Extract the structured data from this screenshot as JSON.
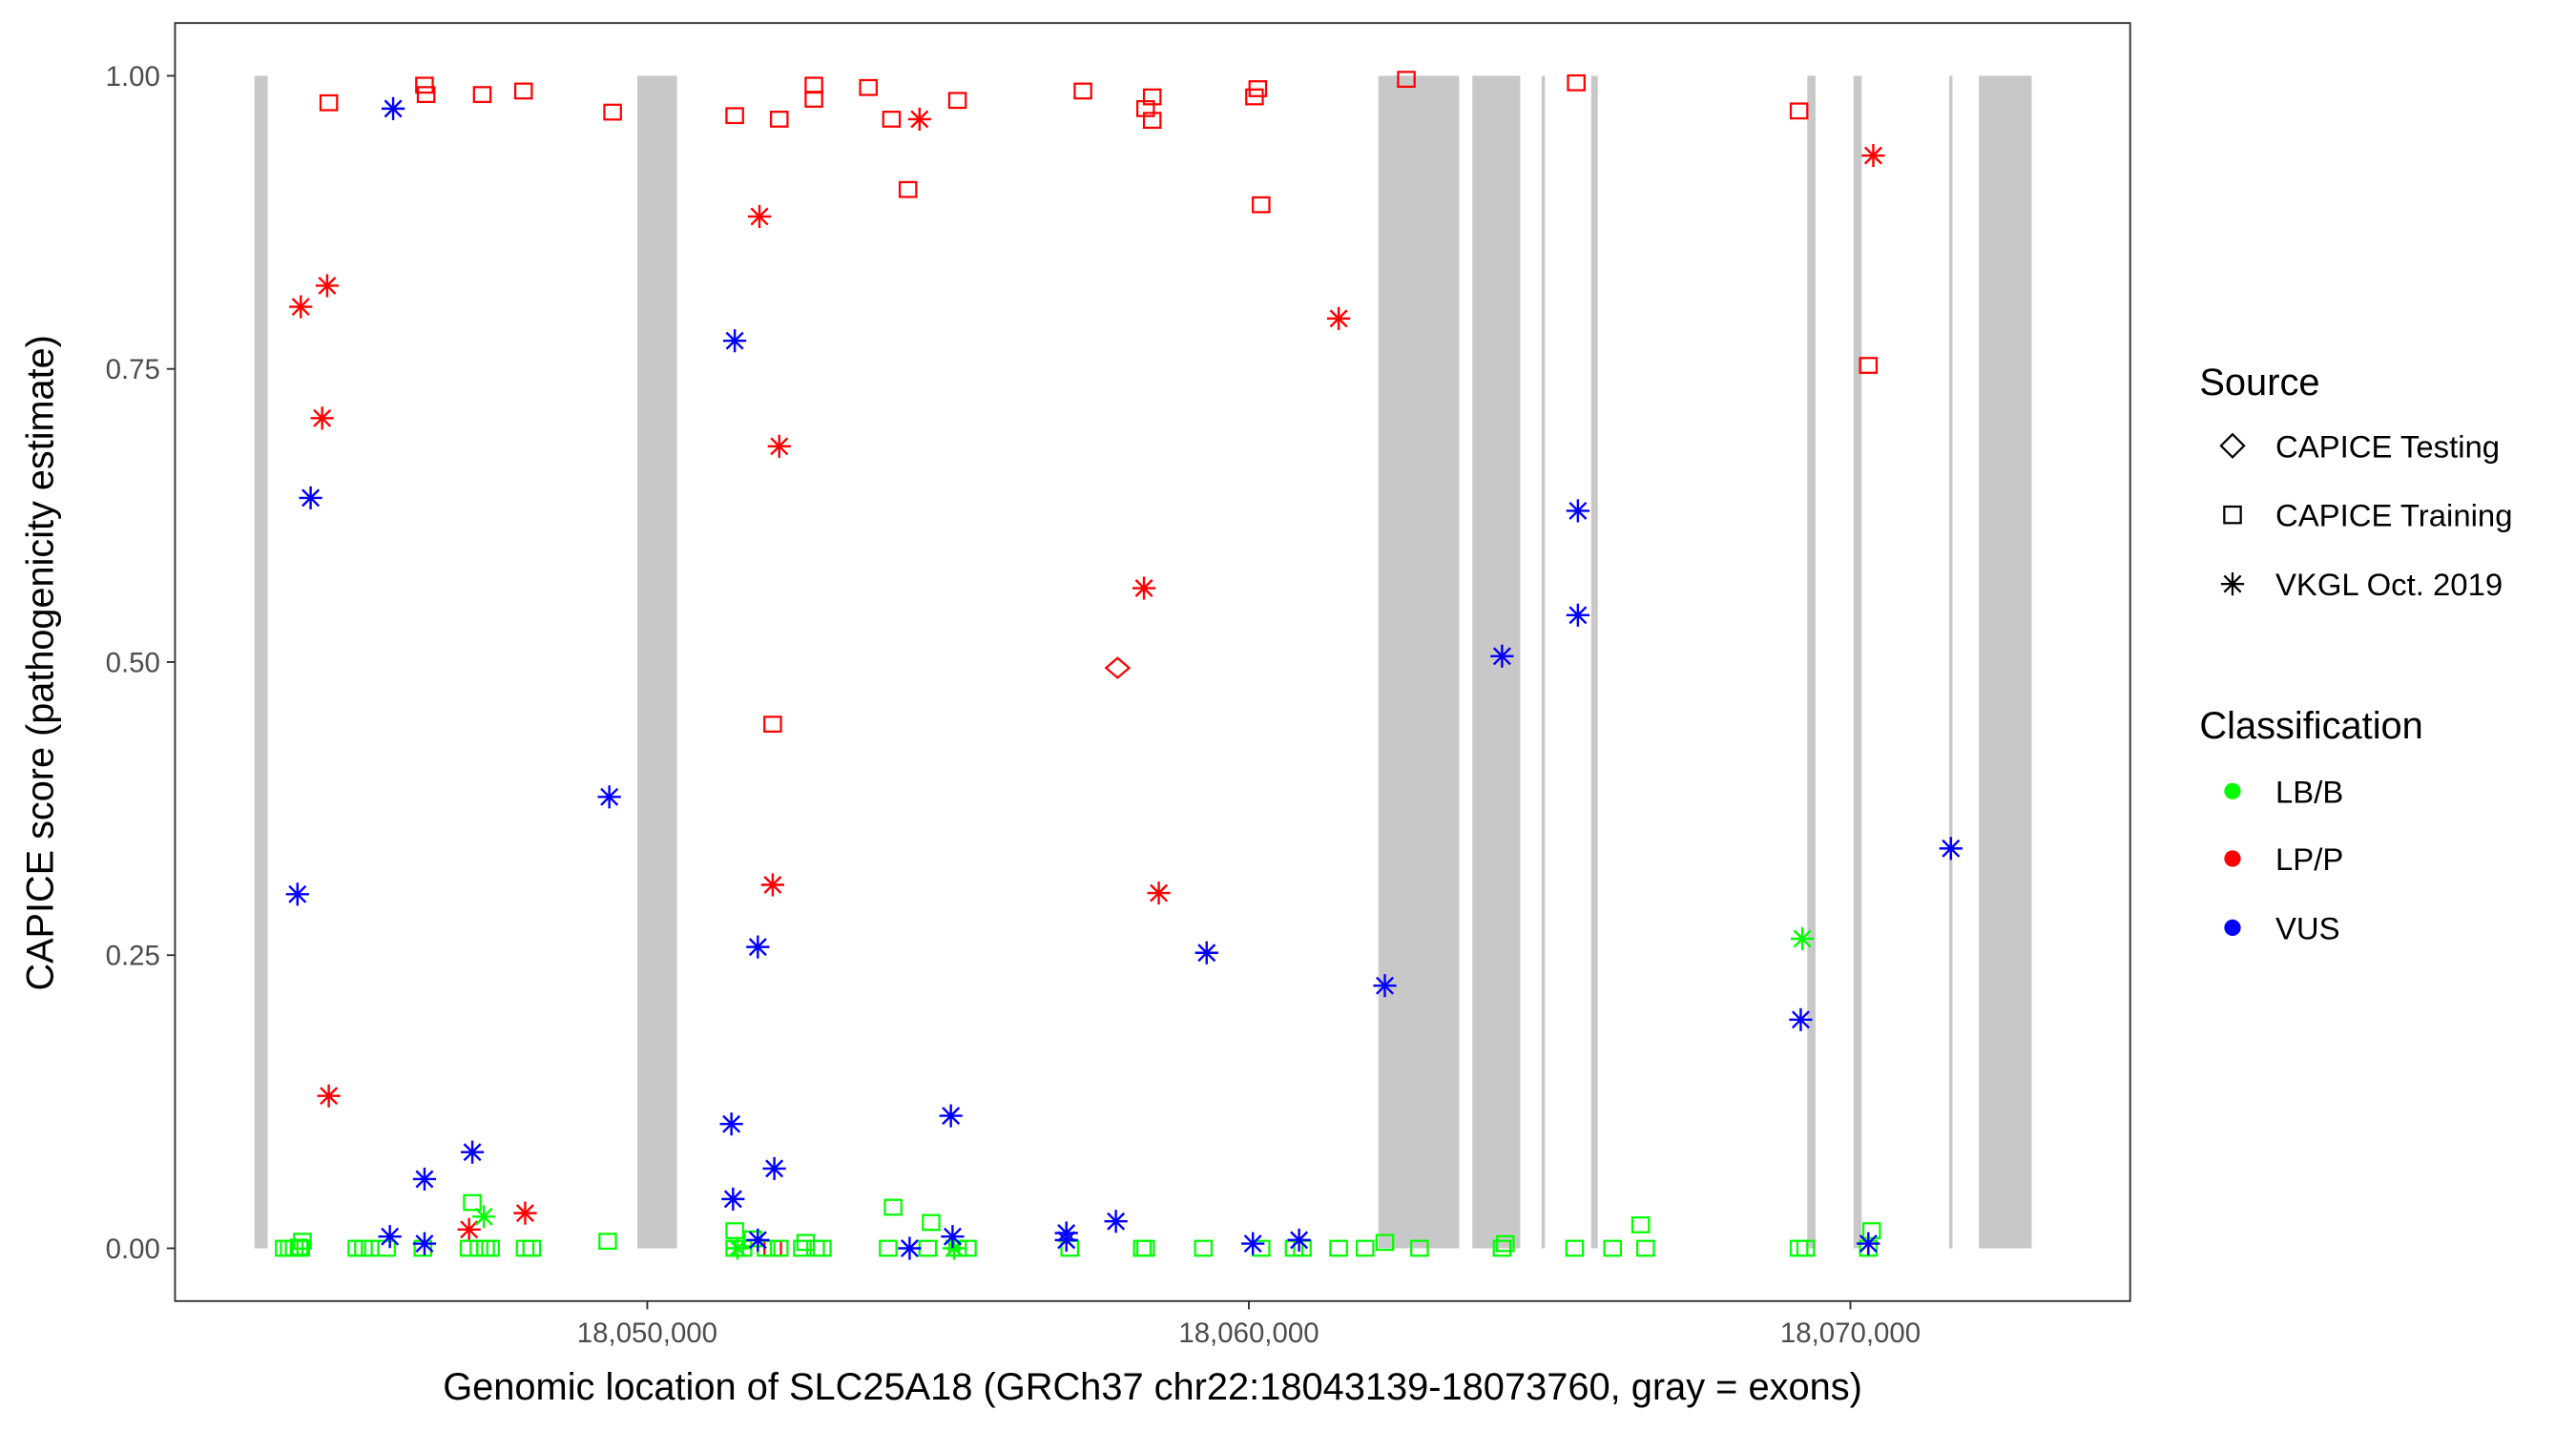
{
  "chart_data": {
    "type": "scatter",
    "xlabel": "Genomic location of SLC25A18 (GRCh37 chr22:18043139-18073760, gray = exons)",
    "ylabel": "CAPICE score (pathogenicity estimate)",
    "xlim": [
      18042150,
      18074650
    ],
    "ylim": [
      -0.045,
      1.045
    ],
    "x_ticks": [
      18050000,
      18060000,
      18070000
    ],
    "x_tick_labels": [
      "18,050,000",
      "18,060,000",
      "18,070,000"
    ],
    "y_ticks": [
      0,
      0.25,
      0.5,
      0.75,
      1.0
    ],
    "y_tick_labels": [
      "0.00",
      "0.25",
      "0.50",
      "0.75",
      "1.00"
    ],
    "grid": false,
    "legend_placement": "right",
    "exons": [
      [
        18043471,
        18043690
      ],
      [
        18049835,
        18050494
      ],
      [
        18062152,
        18063496
      ],
      [
        18063716,
        18064511
      ],
      [
        18064867,
        18064922
      ],
      [
        18065690,
        18065800
      ],
      [
        18069283,
        18069420
      ],
      [
        18070051,
        18070188
      ],
      [
        18071642,
        18071697
      ],
      [
        18072136,
        18073014
      ]
    ],
    "exon_color": "#c8c8c8",
    "legend": {
      "source_title": "Source",
      "sources": [
        {
          "label": "CAPICE Testing",
          "shape": "diamond"
        },
        {
          "label": "CAPICE Training",
          "shape": "square"
        },
        {
          "label": "VKGL Oct. 2019",
          "shape": "asterisk"
        }
      ],
      "class_title": "Classification",
      "classes": [
        {
          "label": "LB/B",
          "color": "#00ff00"
        },
        {
          "label": "LP/P",
          "color": "#ff0000"
        },
        {
          "label": "VUS",
          "color": "#0000ff"
        }
      ]
    },
    "series": [
      {
        "name": "LP/P - CAPICE Training",
        "class": "LP/P",
        "shape": "square",
        "points": [
          [
            18044706,
            0.977
          ],
          [
            18046297,
            0.992
          ],
          [
            18046324,
            0.984
          ],
          [
            18047257,
            0.984
          ],
          [
            18047943,
            0.987
          ],
          [
            18049424,
            0.969
          ],
          [
            18051454,
            0.966
          ],
          [
            18052194,
            0.963
          ],
          [
            18052770,
            0.992
          ],
          [
            18052770,
            0.98
          ],
          [
            18053676,
            0.99
          ],
          [
            18054060,
            0.963
          ],
          [
            18054334,
            0.903
          ],
          [
            18055157,
            0.979
          ],
          [
            18052085,
            0.447
          ],
          [
            18057242,
            0.987
          ],
          [
            18058284,
            0.972
          ],
          [
            18058394,
            0.982
          ],
          [
            18058394,
            0.962
          ],
          [
            18060094,
            0.982
          ],
          [
            18060149,
            0.989
          ],
          [
            18060204,
            0.89
          ],
          [
            18062618,
            0.997
          ],
          [
            18065443,
            0.994
          ],
          [
            18069146,
            0.97
          ],
          [
            18070298,
            0.753
          ],
          [
            18052085,
            0.0
          ]
        ]
      },
      {
        "name": "LP/P - VKGL Oct. 2019",
        "class": "LP/P",
        "shape": "asterisk",
        "points": [
          [
            18044240,
            0.803
          ],
          [
            18044679,
            0.821
          ],
          [
            18044596,
            0.708
          ],
          [
            18044706,
            0.13
          ],
          [
            18047038,
            0.016
          ],
          [
            18047970,
            0.03
          ],
          [
            18051865,
            0.88
          ],
          [
            18052194,
            0.684
          ],
          [
            18052085,
            0.31
          ],
          [
            18054526,
            0.963
          ],
          [
            18058257,
            0.563
          ],
          [
            18058503,
            0.303
          ],
          [
            18061493,
            0.793
          ],
          [
            18070380,
            0.932
          ]
        ]
      },
      {
        "name": "LP/P - CAPICE Testing",
        "class": "LP/P",
        "shape": "diamond",
        "points": [
          [
            18057818,
            0.495
          ]
        ]
      },
      {
        "name": "LB/B - CAPICE Training",
        "class": "LB/B",
        "shape": "square",
        "points": [
          [
            18043965,
            0
          ],
          [
            18044048,
            0
          ],
          [
            18044130,
            0
          ],
          [
            18044212,
            0.001
          ],
          [
            18044267,
            0.006
          ],
          [
            18044240,
            0
          ],
          [
            18045172,
            0
          ],
          [
            18045282,
            0
          ],
          [
            18045392,
            0
          ],
          [
            18045666,
            0
          ],
          [
            18046270,
            0
          ],
          [
            18047038,
            0
          ],
          [
            18047202,
            0
          ],
          [
            18047312,
            0
          ],
          [
            18047394,
            0
          ],
          [
            18047970,
            0
          ],
          [
            18048080,
            0
          ],
          [
            18049342,
            0.006
          ],
          [
            18051454,
            0.015
          ],
          [
            18051454,
            0
          ],
          [
            18051591,
            0
          ],
          [
            18051756,
            0.008
          ],
          [
            18051975,
            0
          ],
          [
            18052194,
            0
          ],
          [
            18052578,
            0
          ],
          [
            18052633,
            0.005
          ],
          [
            18052798,
            0
          ],
          [
            18052908,
            0
          ],
          [
            18054005,
            0
          ],
          [
            18054663,
            0
          ],
          [
            18055157,
            0
          ],
          [
            18055322,
            0
          ],
          [
            18057022,
            0
          ],
          [
            18058229,
            0
          ],
          [
            18058284,
            0
          ],
          [
            18059244,
            0
          ],
          [
            18060204,
            0
          ],
          [
            18060753,
            0
          ],
          [
            18060890,
            0
          ],
          [
            18061493,
            0
          ],
          [
            18061932,
            0
          ],
          [
            18062261,
            0.005
          ],
          [
            18062837,
            0
          ],
          [
            18064209,
            0
          ],
          [
            18064264,
            0.004
          ],
          [
            18065416,
            0
          ],
          [
            18066047,
            0
          ],
          [
            18066595,
            0
          ],
          [
            18066513,
            0.02
          ],
          [
            18069146,
            0
          ],
          [
            18069256,
            0
          ],
          [
            18070353,
            0.015
          ],
          [
            18070298,
            0
          ],
          [
            18047092,
            0.039
          ],
          [
            18054087,
            0.035
          ],
          [
            18054718,
            0.022
          ]
        ]
      },
      {
        "name": "LB/B - VKGL Oct. 2019",
        "class": "LB/B",
        "shape": "asterisk",
        "points": [
          [
            18047284,
            0.027
          ],
          [
            18069201,
            0.264
          ],
          [
            18051500,
            0.0
          ],
          [
            18055100,
            0.0
          ]
        ]
      },
      {
        "name": "VUS - VKGL Oct. 2019",
        "class": "VUS",
        "shape": "asterisk",
        "points": [
          [
            18045776,
            0.972
          ],
          [
            18044404,
            0.64
          ],
          [
            18044185,
            0.302
          ],
          [
            18045721,
            0.01
          ],
          [
            18046297,
            0.059
          ],
          [
            18046297,
            0.004
          ],
          [
            18047092,
            0.082
          ],
          [
            18049369,
            0.385
          ],
          [
            18051454,
            0.774
          ],
          [
            18051399,
            0.106
          ],
          [
            18051426,
            0.042
          ],
          [
            18051838,
            0.257
          ],
          [
            18052112,
            0.068
          ],
          [
            18051838,
            0.007
          ],
          [
            18054361,
            0.0
          ],
          [
            18055047,
            0.113
          ],
          [
            18055075,
            0.01
          ],
          [
            18056967,
            0.013
          ],
          [
            18056967,
            0.007
          ],
          [
            18057790,
            0.023
          ],
          [
            18059299,
            0.252
          ],
          [
            18060067,
            0.004
          ],
          [
            18060835,
            0.007
          ],
          [
            18062261,
            0.224
          ],
          [
            18064209,
            0.505
          ],
          [
            18065470,
            0.629
          ],
          [
            18065470,
            0.54
          ],
          [
            18069174,
            0.195
          ],
          [
            18070298,
            0.004
          ],
          [
            18071670,
            0.341
          ]
        ]
      }
    ]
  }
}
